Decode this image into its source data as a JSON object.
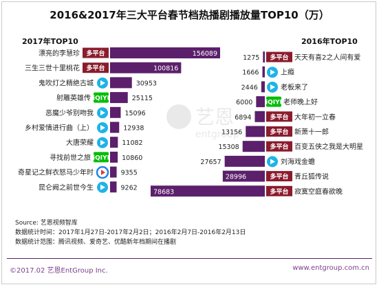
{
  "title": "2016&2017年三大平台春节档热播剧播放量TOP10（万）",
  "left_title": "2017年TOP10",
  "right_title": "2016年TOP10",
  "watermark": {
    "main": "艺恩",
    "sub": "entgroup"
  },
  "notes": [
    "Source: 艺恩视频智库",
    "数据统计时间：2017年1月27日-2017年2月2日；2016年2月7日-2016年2月13日",
    "数据统计范围：腾讯视频、爱奇艺、优酷新年档期间在播剧"
  ],
  "footer_left": "©2017.02 艺恩EntGroup Inc.",
  "footer_right": "www.entgroup.com.cn",
  "colors": {
    "bar": "#5b1f6b",
    "badge_multi": "#8a1c2d",
    "tencent": "#1fb3e6",
    "iqiyi": "#00be06",
    "youku": "#1e88e5"
  },
  "chart_data": [
    {
      "type": "bar",
      "title": "2017年TOP10",
      "categories": [
        "漂亮的李慧珍",
        "三生三世十里桃花",
        "鬼吹灯之精绝古城",
        "射雕英雄传",
        "恶魔少爷别吻我",
        "乡村爱情进行曲（上）",
        "大唐荣耀",
        "寻找前世之旅",
        "奇星记之鲜衣怒马少年时",
        "昆仑阙之前世今生"
      ],
      "values": [
        156089,
        100816,
        30953,
        25115,
        15096,
        12938,
        11082,
        10860,
        9355,
        9262
      ],
      "platforms": [
        "多平台",
        "多平台",
        "tencent",
        "iqiyi",
        "tencent",
        "tencent",
        "tencent",
        "iqiyi",
        "youku",
        "tencent"
      ]
    },
    {
      "type": "bar",
      "title": "2016年TOP10",
      "categories": [
        "天天有喜2之人间有爱",
        "上瘾",
        "老板来了",
        "老师晚上好",
        "大年初一立春",
        "新萧十一郎",
        "百变五侠之我是大明星",
        "刘海戏金蟾",
        "青丘狐传说",
        "寂寞空庭春欲晚"
      ],
      "values": [
        1275,
        1666,
        2446,
        6000,
        6894,
        13156,
        15308,
        27657,
        28996,
        78683
      ],
      "platforms": [
        "多平台",
        "tencent",
        "tencent",
        "iqiyi",
        "多平台",
        "多平台",
        "多平台",
        "tencent",
        "多平台",
        "多平台"
      ]
    }
  ]
}
